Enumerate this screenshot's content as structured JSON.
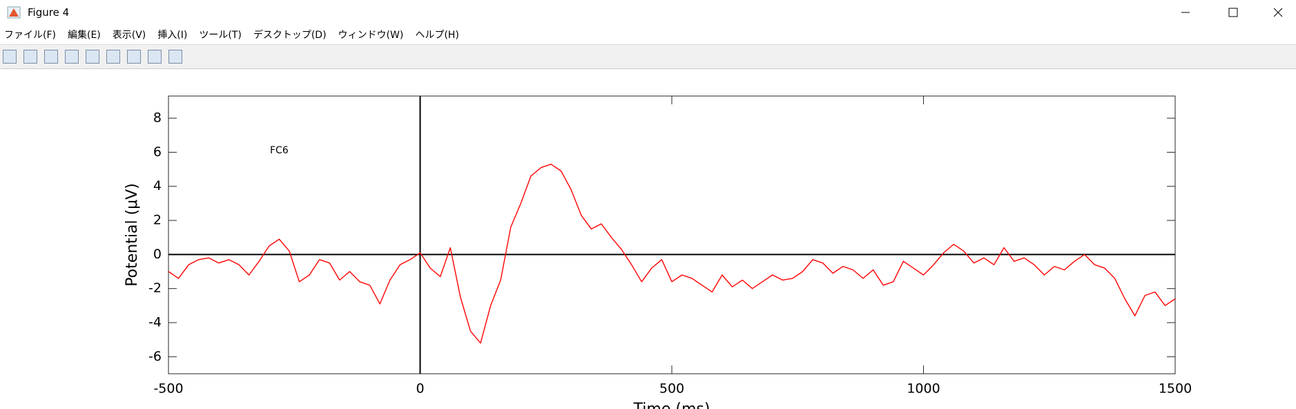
{
  "window": {
    "title": "Figure 4",
    "menu": [
      "ファイル(F)",
      "編集(E)",
      "表示(V)",
      "挿入(I)",
      "ツール(T)",
      "デスクトップ(D)",
      "ウィンドウ(W)",
      "ヘルプ(H)"
    ]
  },
  "chart_data": {
    "type": "line",
    "xlabel": "Time (ms)",
    "ylabel": "Potential (μV)",
    "annotation": {
      "text": "FC6",
      "x": -280,
      "y": 6.1
    },
    "color": "#ff0000",
    "zero_lines": true,
    "grid": false,
    "xlim": [
      -500,
      1500
    ],
    "xticks": [
      -500,
      0,
      500,
      1000,
      1500
    ],
    "ylim": [
      -7,
      9.3
    ],
    "yticks": [
      -6,
      -4,
      -2,
      0,
      2,
      4,
      6,
      8
    ],
    "x": [
      -500,
      -480,
      -460,
      -440,
      -420,
      -400,
      -380,
      -360,
      -340,
      -320,
      -300,
      -280,
      -260,
      -240,
      -220,
      -200,
      -180,
      -160,
      -140,
      -120,
      -100,
      -80,
      -60,
      -40,
      -20,
      0,
      20,
      40,
      60,
      80,
      100,
      120,
      140,
      160,
      180,
      200,
      220,
      240,
      260,
      280,
      300,
      320,
      340,
      360,
      380,
      400,
      420,
      440,
      460,
      480,
      500,
      520,
      540,
      560,
      580,
      600,
      620,
      640,
      660,
      680,
      700,
      720,
      740,
      760,
      780,
      800,
      820,
      840,
      860,
      880,
      900,
      920,
      940,
      960,
      980,
      1000,
      1020,
      1040,
      1060,
      1080,
      1100,
      1120,
      1140,
      1160,
      1180,
      1200,
      1220,
      1240,
      1260,
      1280,
      1300,
      1320,
      1340,
      1360,
      1380,
      1400,
      1420,
      1440,
      1460,
      1480,
      1500
    ],
    "values": [
      -1.0,
      -1.4,
      -0.6,
      -0.3,
      -0.2,
      -0.5,
      -0.3,
      -0.6,
      -1.2,
      -0.4,
      0.5,
      0.9,
      0.2,
      -1.6,
      -1.2,
      -0.3,
      -0.5,
      -1.5,
      -1.0,
      -1.6,
      -1.8,
      -2.9,
      -1.5,
      -0.6,
      -0.3,
      0.1,
      -0.8,
      -1.3,
      0.4,
      -2.5,
      -4.5,
      -5.2,
      -3.0,
      -1.5,
      1.6,
      3.0,
      4.6,
      5.1,
      5.3,
      4.9,
      3.8,
      2.3,
      1.5,
      1.8,
      1.0,
      0.3,
      -0.6,
      -1.6,
      -0.8,
      -0.3,
      -1.6,
      -1.2,
      -1.4,
      -1.8,
      -2.2,
      -1.2,
      -1.9,
      -1.5,
      -2.0,
      -1.6,
      -1.2,
      -1.5,
      -1.4,
      -1.0,
      -0.3,
      -0.5,
      -1.1,
      -0.7,
      -0.9,
      -1.4,
      -0.9,
      -1.8,
      -1.6,
      -0.4,
      -0.8,
      -1.2,
      -0.6,
      0.1,
      0.6,
      0.2,
      -0.5,
      -0.2,
      -0.6,
      0.4,
      -0.4,
      -0.2,
      -0.6,
      -1.2,
      -0.7,
      -0.9,
      -0.4,
      0.0,
      -0.6,
      -0.8,
      -1.4,
      -2.6,
      -3.6,
      -2.4,
      -2.2,
      -3.0,
      -2.6
    ]
  }
}
